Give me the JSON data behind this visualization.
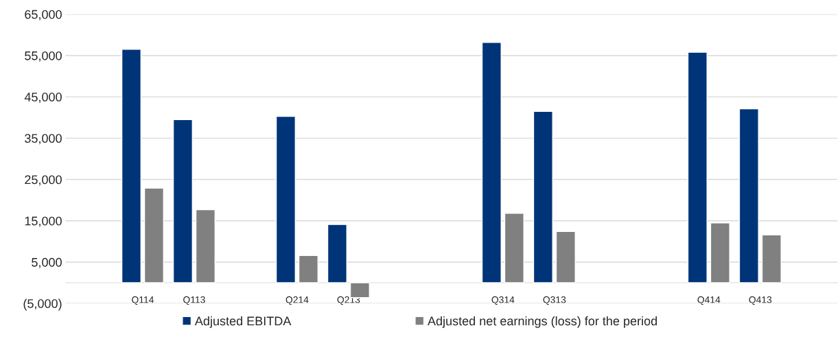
{
  "chart_data": {
    "type": "bar",
    "categories": [
      null,
      "Q114",
      "Q113",
      null,
      "Q214",
      "Q213",
      null,
      null,
      "Q314",
      "Q313",
      null,
      null,
      "Q414",
      "Q413",
      null
    ],
    "series": [
      {
        "name": "Adjusted EBITDA",
        "color": "#003478",
        "values": [
          null,
          56500,
          39500,
          null,
          40300,
          14100,
          null,
          null,
          58200,
          41500,
          null,
          null,
          55800,
          42100,
          null
        ]
      },
      {
        "name": "Adjusted net earnings (loss) for the period",
        "color": "#808080",
        "values": [
          null,
          22900,
          17700,
          null,
          6600,
          -3600,
          null,
          null,
          16800,
          12400,
          null,
          null,
          14500,
          11600,
          null
        ]
      }
    ],
    "ylim": [
      -5000,
      65000
    ],
    "yticks": [
      {
        "value": -5000,
        "label": "(5,000)"
      },
      {
        "value": 5000,
        "label": "5,000"
      },
      {
        "value": 15000,
        "label": "15,000"
      },
      {
        "value": 25000,
        "label": "25,000"
      },
      {
        "value": 35000,
        "label": "35,000"
      },
      {
        "value": 45000,
        "label": "45,000"
      },
      {
        "value": 55000,
        "label": "55,000"
      },
      {
        "value": 65000,
        "label": "65,000"
      }
    ],
    "grid": "y",
    "legend": "bottom"
  }
}
